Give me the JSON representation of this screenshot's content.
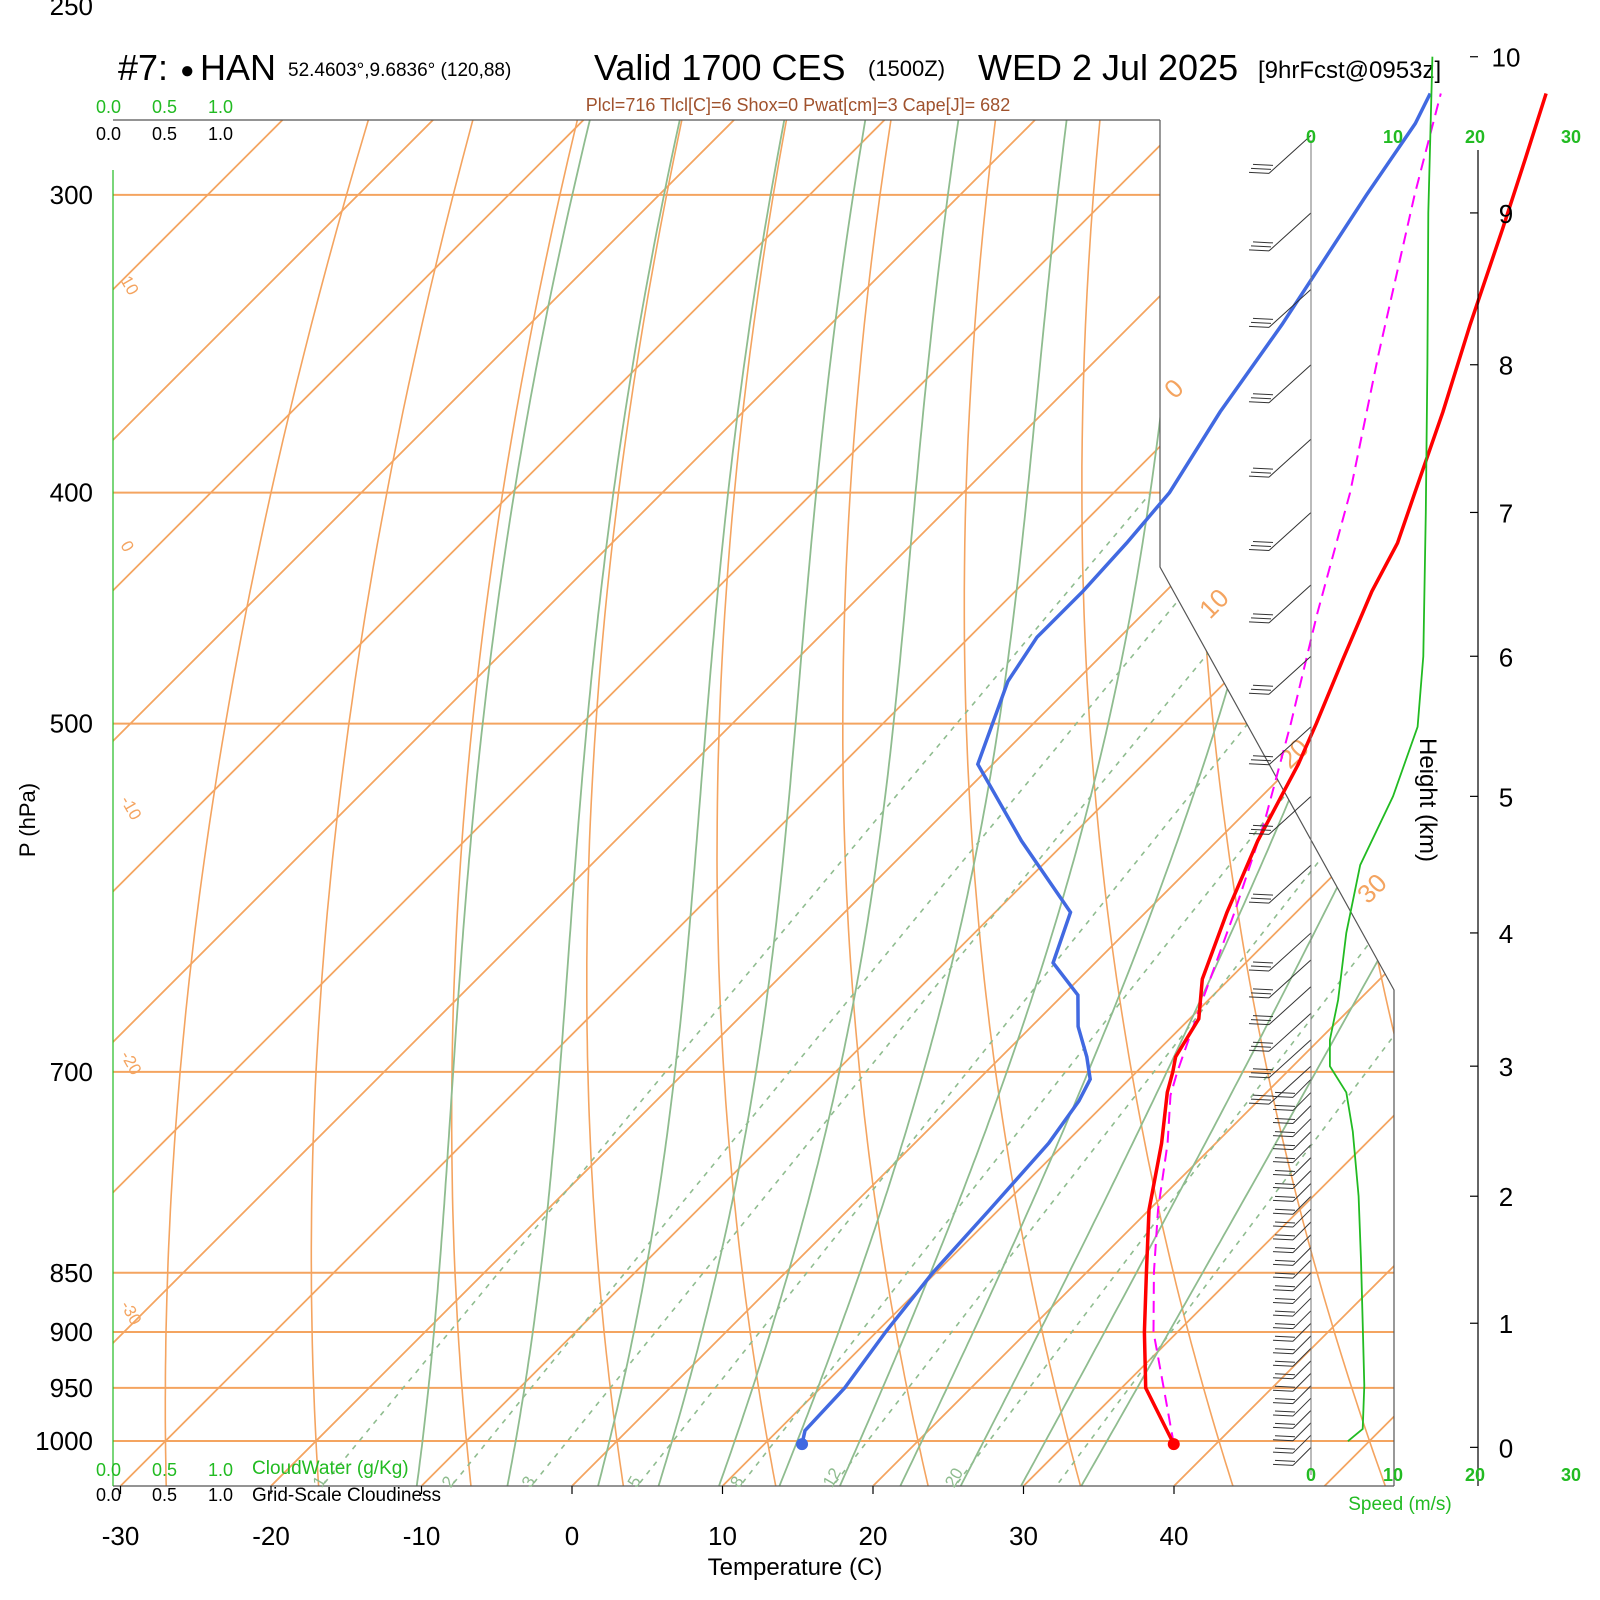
{
  "header": {
    "station_id": "#7:",
    "station_marker": "●",
    "station_name": "HAN",
    "coords": "52.4603°,9.6836° (120,88)",
    "valid": "Valid 1700 CES",
    "zulu": "(1500Z)",
    "date": "WED 2 Jul 2025",
    "forecast": "[9hrFcst@0953z]",
    "indices": "Plcl=716 Tlcl[C]=6 Shox=0 Pwat[cm]=3 Cape[J]= 682"
  },
  "colors": {
    "temperature": "#ff0000",
    "dewpoint": "#4169e1",
    "parcel": "#ff00ff",
    "isotherm": "#f4a460",
    "dry_adiabat": "#f4a460",
    "moist_adiabat": "#8fbc8f",
    "mixing_ratio": "#8fbc8f",
    "speed": "#22bb22",
    "indices_text": "#a0522d",
    "cloud_green": "#22bb22"
  },
  "chart_data": {
    "type": "line",
    "subtype": "skew-T log-p sounding",
    "xlabel": "Temperature (C)",
    "ylabel": "P (hPa)",
    "y2label": "Height (km)",
    "xlim": [
      -30,
      45
    ],
    "ylim_hpa": [
      1050,
      250
    ],
    "x_ticks": [
      -30,
      -20,
      -10,
      0,
      10,
      20,
      30,
      40
    ],
    "pressure_ticks": [
      250,
      300,
      400,
      500,
      700,
      850,
      900,
      950,
      1000
    ],
    "height_ticks_km": [
      0,
      1,
      2,
      3,
      4,
      5,
      6,
      7,
      8,
      9,
      10
    ],
    "mixing_ratio_labels": [
      "1",
      "2",
      "3",
      "5",
      "8",
      "12",
      "20"
    ],
    "isotherm_side_labels": [
      "10",
      "0",
      "-10",
      "-20",
      "-30"
    ],
    "isotherm_diag_labels": [
      "0",
      "10",
      "20",
      "30"
    ],
    "cloud_scale_green": [
      "0.0",
      "0.5",
      "1.0"
    ],
    "cloud_scale_black": [
      "0.0",
      "0.5",
      "1.0"
    ],
    "cloud_water_label": "CloudWater (g/Kg)",
    "cloudiness_label": "Grid-Scale Cloudiness",
    "speed_ticks": [
      "0",
      "10",
      "20",
      "30"
    ],
    "speed_label": "Speed (m/s)",
    "series": [
      {
        "key": "temperature",
        "points": [
          [
            1003,
            37.2
          ],
          [
            950,
            31.6
          ],
          [
            900,
            27.8
          ],
          [
            850,
            24.0
          ],
          [
            800,
            20.0
          ],
          [
            750,
            16.4
          ],
          [
            714,
            13.4
          ],
          [
            700,
            12.4
          ],
          [
            690,
            11.6
          ],
          [
            665,
            10.6
          ],
          [
            640,
            8.2
          ],
          [
            600,
            5.4
          ],
          [
            560,
            2.7
          ],
          [
            520,
            0.3
          ],
          [
            500,
            -1.2
          ],
          [
            470,
            -3.7
          ],
          [
            440,
            -6.3
          ],
          [
            420,
            -7.8
          ],
          [
            400,
            -10.0
          ],
          [
            370,
            -13.5
          ],
          [
            340,
            -17.5
          ],
          [
            310,
            -21.7
          ],
          [
            290,
            -24.8
          ],
          [
            272,
            -27.8
          ]
        ]
      },
      {
        "key": "dewpoint",
        "points": [
          [
            1003,
            12.5
          ],
          [
            990,
            11.8
          ],
          [
            950,
            11.6
          ],
          [
            900,
            10.6
          ],
          [
            850,
            9.8
          ],
          [
            800,
            9.4
          ],
          [
            750,
            8.9
          ],
          [
            720,
            8.1
          ],
          [
            705,
            7.4
          ],
          [
            690,
            5.7
          ],
          [
            670,
            3.1
          ],
          [
            650,
            1.0
          ],
          [
            630,
            -2.8
          ],
          [
            600,
            -5.0
          ],
          [
            560,
            -13.0
          ],
          [
            520,
            -21.0
          ],
          [
            480,
            -24.5
          ],
          [
            460,
            -25.5
          ],
          [
            440,
            -25.5
          ],
          [
            420,
            -25.8
          ],
          [
            400,
            -26.3
          ],
          [
            370,
            -28.3
          ],
          [
            340,
            -30.0
          ],
          [
            300,
            -33.0
          ],
          [
            280,
            -34.5
          ],
          [
            272,
            -35.5
          ]
        ]
      },
      {
        "key": "parcel",
        "points": [
          [
            1003,
            37.2
          ],
          [
            950,
            32.8
          ],
          [
            900,
            28.4
          ],
          [
            850,
            24.5
          ],
          [
            800,
            20.6
          ],
          [
            750,
            16.8
          ],
          [
            716,
            13.8
          ],
          [
            700,
            12.7
          ],
          [
            650,
            9.4
          ],
          [
            600,
            5.9
          ],
          [
            550,
            1.9
          ],
          [
            500,
            -2.9
          ],
          [
            450,
            -8.4
          ],
          [
            400,
            -14.3
          ],
          [
            350,
            -21.6
          ],
          [
            300,
            -29.8
          ],
          [
            272,
            -34.8
          ]
        ],
        "dash": true
      }
    ],
    "wind_speed_profile": [
      [
        0.05,
        4.5
      ],
      [
        0.15,
        6.3
      ],
      [
        0.5,
        6.5
      ],
      [
        1.0,
        6.3
      ],
      [
        1.5,
        6.1
      ],
      [
        2.0,
        5.8
      ],
      [
        2.5,
        5.1
      ],
      [
        2.8,
        4.3
      ],
      [
        3.0,
        2.3
      ],
      [
        3.2,
        2.3
      ],
      [
        3.5,
        3.3
      ],
      [
        4.0,
        4.3
      ],
      [
        4.5,
        6.0
      ],
      [
        5.0,
        10.0
      ],
      [
        5.5,
        13.0
      ],
      [
        6.0,
        13.7
      ],
      [
        7.0,
        14.0
      ],
      [
        8.0,
        14.2
      ],
      [
        9.0,
        14.3
      ],
      [
        10.0,
        14.8
      ]
    ],
    "barb_heights_km": [
      0.0,
      0.1,
      0.2,
      0.3,
      0.4,
      0.5,
      0.6,
      0.7,
      0.8,
      0.9,
      1.0,
      1.1,
      1.2,
      1.3,
      1.4,
      1.5,
      1.6,
      1.7,
      1.8,
      1.9,
      2.0,
      2.1,
      2.2,
      2.3,
      2.4,
      2.5,
      2.6,
      2.7,
      2.8,
      2.9,
      3.0,
      3.2,
      3.4,
      3.6,
      3.8,
      4.0,
      4.5,
      5.0,
      5.5,
      6.0,
      6.5,
      7.0,
      7.5,
      8.0,
      8.5,
      9.0,
      9.5
    ]
  }
}
